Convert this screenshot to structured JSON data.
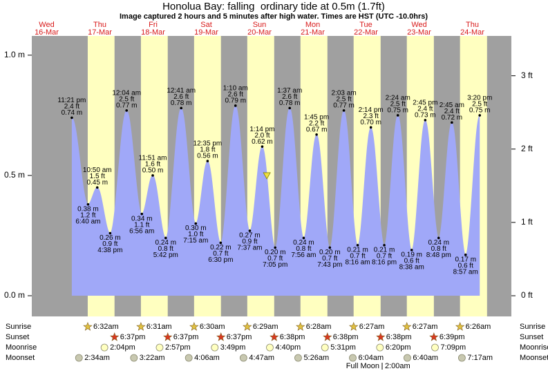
{
  "chart_data": {
    "type": "tide",
    "title": "Honolua Bay: falling  ordinary tide at 0.5m (1.7ft)",
    "subtitle": "Image captured 2 hours and 5 minutes after high water. Times are HST (UTC -10.0hrs)",
    "color": "#a0a8f8",
    "xlim": [
      5.3,
      221.6
    ],
    "xticks": [
      {
        "value": 12,
        "label": "Wed"
      },
      {
        "value": 36,
        "label": "Thu"
      },
      {
        "value": 60,
        "label": "Fri"
      },
      {
        "value": 84,
        "label": "Sat"
      },
      {
        "value": 108,
        "label": "Sun"
      },
      {
        "value": 132,
        "label": "Mon"
      },
      {
        "value": 156,
        "label": "Tue"
      },
      {
        "value": 180,
        "label": "Wed"
      },
      {
        "value": 204,
        "label": "Thu"
      }
    ],
    "dates": [
      "16-Mar",
      "17-Mar",
      "18-Mar",
      "19-Mar",
      "20-Mar",
      "21-Mar",
      "22-Mar",
      "23-Mar",
      "24-Mar"
    ],
    "ylim": [
      -0.086,
      1.08
    ],
    "yticks": [
      {
        "value": 0,
        "label": "0.0 m"
      },
      {
        "value": 0.5,
        "label": "0.5 m"
      },
      {
        "value": 1,
        "label": "1.0 m"
      }
    ],
    "y2lim": [
      -0.282,
      3.543
    ],
    "y2ticks": [
      {
        "value": 0,
        "label": "0 ft"
      },
      {
        "value": 1,
        "label": "1 ft"
      },
      {
        "value": 2,
        "label": "2 ft"
      },
      {
        "value": 3,
        "label": "3 ft"
      }
    ],
    "x": [
      23.35,
      30.67,
      34.83,
      40.63,
      48.07,
      54.93,
      59.85,
      65.7,
      72.68,
      79.25,
      84.58,
      90.5,
      97.17,
      103.62,
      109.23,
      115.08,
      121.62,
      127.93,
      133.75,
      139.72,
      146.05,
      152.27,
      158.23,
      164.27,
      170.4,
      176.63,
      182.75,
      188.8,
      194.75,
      200.95,
      207.33
    ],
    "x_labels": [
      "11:21 pm",
      "6:40 am",
      "10:50 am",
      "4:38 pm",
      "12:04 am",
      "6:56 am",
      "11:51 am",
      "5:42 pm",
      "12:41 am",
      "7:15 am",
      "12:35 pm",
      "6:30 pm",
      "1:10 am",
      "7:37 am",
      "1:14 pm",
      "7:05 pm",
      "1:37 am",
      "7:56 am",
      "1:45 pm",
      "7:43 pm",
      "2:03 am",
      "8:16 am",
      "2:14 pm",
      "8:16 pm",
      "2:24 am",
      "8:38 am",
      "2:45 pm",
      "8:48 pm",
      "2:45 am",
      "8:57 am",
      "3:20 pm"
    ],
    "values": [
      0.74,
      0.38,
      0.45,
      0.26,
      0.77,
      0.34,
      0.5,
      0.24,
      0.78,
      0.3,
      0.56,
      0.22,
      0.79,
      0.27,
      0.62,
      0.2,
      0.78,
      0.24,
      0.67,
      0.2,
      0.77,
      0.21,
      0.7,
      0.21,
      0.75,
      0.19,
      0.73,
      0.24,
      0.72,
      0.17,
      0.75
    ],
    "value_labels": [
      "0.74 m",
      "0.38 m",
      "0.45 m",
      "0.26 m",
      "0.77 m",
      "0.34 m",
      "0.50 m",
      "0.24 m",
      "0.78 m",
      "0.30 m",
      "0.56 m",
      "0.22 m",
      "0.79 m",
      "0.27 m",
      "0.62 m",
      "0.20 m",
      "0.78 m",
      "0.24 m",
      "0.67 m",
      "0.20 m",
      "0.77 m",
      "0.21 m",
      "0.70 m",
      "0.21 m",
      "0.75 m",
      "0.19 m",
      "0.73 m",
      "0.24 m",
      "0.72 m",
      "0.17 m",
      "0.75 m"
    ],
    "ft_labels": [
      "2.4 ft",
      "1.2 ft",
      "1.5 ft",
      "0.9 ft",
      "2.5 ft",
      "1.1 ft",
      "1.6 ft",
      "0.8 ft",
      "2.6 ft",
      "1.0 ft",
      "1.8 ft",
      "0.7 ft",
      "2.6 ft",
      "0.9 ft",
      "2.0 ft",
      "0.7 ft",
      "2.6 ft",
      "0.8 ft",
      "2.2 ft",
      "0.7 ft",
      "2.5 ft",
      "0.7 ft",
      "2.3 ft",
      "0.7 ft",
      "2.5 ft",
      "0.6 ft",
      "2.4 ft",
      "0.8 ft",
      "2.4 ft",
      "0.6 ft",
      "2.5 ft"
    ],
    "now": {
      "x": 111.32,
      "value": 0.5,
      "color": "#f0e040"
    },
    "rows": [
      {
        "label": "Sunrise",
        "icon": "star",
        "color": "#e0c040",
        "times": [
          "6:32am",
          "6:31am",
          "6:30am",
          "6:29am",
          "6:28am",
          "6:27am",
          "6:27am",
          "6:26am"
        ]
      },
      {
        "label": "Sunset",
        "icon": "star",
        "color": "#d83820",
        "times": [
          "6:37pm",
          "6:37pm",
          "6:37pm",
          "6:38pm",
          "6:38pm",
          "6:38pm",
          "6:39pm"
        ]
      },
      {
        "label": "Moonrise",
        "icon": "moon",
        "color": "#ffffc0",
        "times": [
          "2:04pm",
          "2:57pm",
          "3:49pm",
          "4:40pm",
          "5:31pm",
          "6:20pm",
          "7:09pm"
        ]
      },
      {
        "label": "Moonset",
        "icon": "moon",
        "color": "#c8c8b0",
        "times": [
          "2:34am",
          "3:22am",
          "4:06am",
          "4:47am",
          "5:26am",
          "6:04am",
          "6:40am",
          "7:17am"
        ]
      }
    ],
    "daylight_color": "#ffffc0",
    "note": {
      "label": "Full Moon",
      "time": "2:00am"
    }
  }
}
